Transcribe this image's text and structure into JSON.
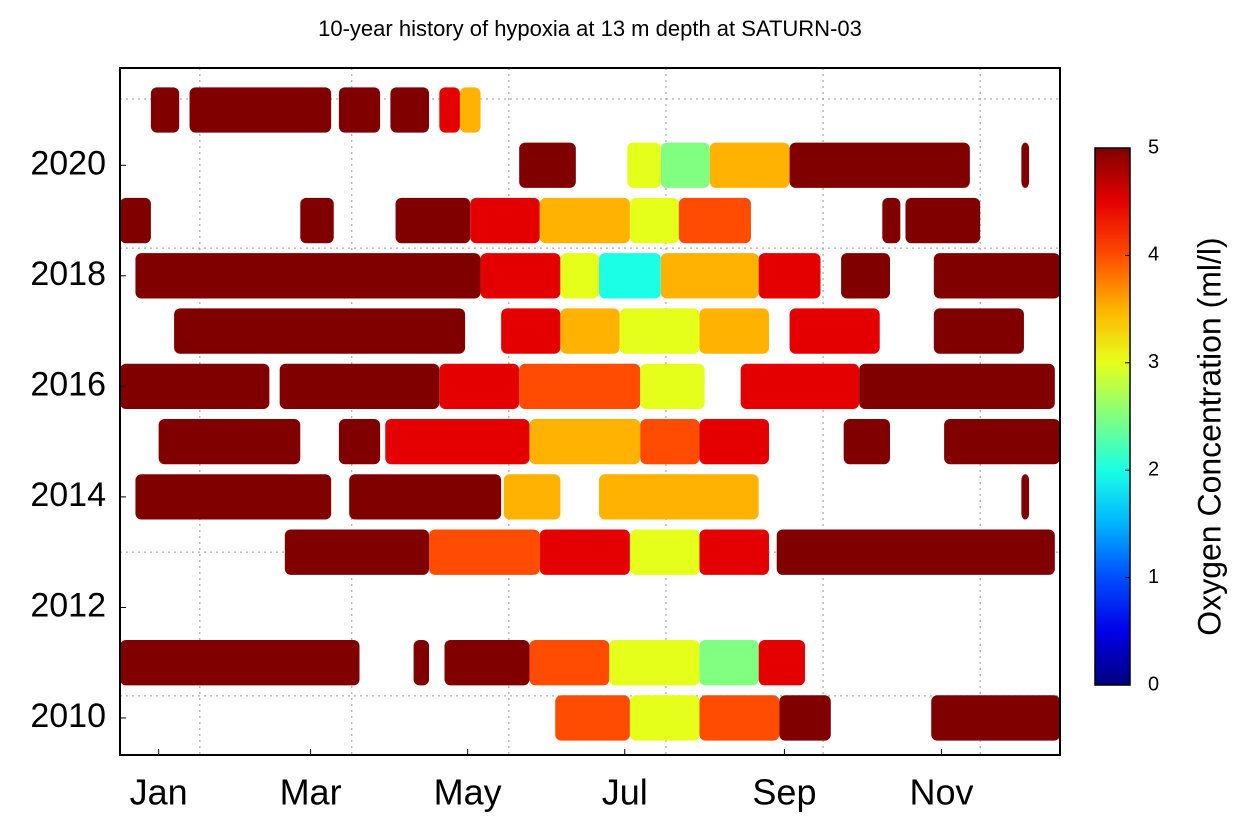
{
  "chart_data": {
    "type": "heatmap",
    "title": "10-year history of hypoxia at 13 m depth at SATURN-03",
    "xlim": [
      0,
      365
    ],
    "xticks": [
      {
        "value": 15,
        "label": "Jan"
      },
      {
        "value": 74,
        "label": "Mar"
      },
      {
        "value": 135,
        "label": "May"
      },
      {
        "value": 196,
        "label": "Jul"
      },
      {
        "value": 258,
        "label": "Sep"
      },
      {
        "value": 319,
        "label": "Nov"
      }
    ],
    "xgrid": [
      31,
      90,
      151,
      212,
      273,
      334
    ],
    "ylim": [
      2009.33,
      2021.76
    ],
    "yticks": [
      2010,
      2012,
      2014,
      2016,
      2018,
      2020
    ],
    "ygrid": [
      2010.4,
      2013,
      2018.5,
      2021.2
    ],
    "grid": true,
    "colorbar": {
      "label": "Oxygen Concentration (ml/l)",
      "colormap": "jet",
      "clim": [
        0,
        5
      ],
      "ticks": [
        0,
        1,
        2,
        3,
        4,
        5
      ]
    },
    "rows": [
      {
        "year": 2021,
        "segments": [
          [
            12,
            23,
            5
          ],
          [
            27,
            82,
            5
          ],
          [
            85,
            101,
            5
          ],
          [
            105,
            120,
            5
          ],
          [
            124,
            132,
            4.5
          ],
          [
            132,
            140,
            3.5
          ]
        ]
      },
      {
        "year": 2020,
        "segments": [
          [
            155,
            177,
            5
          ],
          [
            197,
            210,
            3
          ],
          [
            210,
            229,
            2.5
          ],
          [
            229,
            260,
            3.5
          ],
          [
            260,
            330,
            5
          ],
          [
            350,
            353,
            5
          ]
        ]
      },
      {
        "year": 2019,
        "segments": [
          [
            0,
            12,
            5
          ],
          [
            70,
            83,
            5
          ],
          [
            107,
            136,
            5
          ],
          [
            136,
            163,
            4.5
          ],
          [
            163,
            198,
            3.5
          ],
          [
            198,
            217,
            3
          ],
          [
            217,
            245,
            4
          ],
          [
            296,
            303,
            5
          ],
          [
            305,
            334,
            5
          ]
        ]
      },
      {
        "year": 2018,
        "segments": [
          [
            6,
            140,
            5
          ],
          [
            140,
            171,
            4.5
          ],
          [
            171,
            186,
            3
          ],
          [
            186,
            210,
            2
          ],
          [
            210,
            248,
            3.5
          ],
          [
            248,
            272,
            4.5
          ],
          [
            280,
            299,
            5
          ],
          [
            316,
            365,
            5
          ]
        ]
      },
      {
        "year": 2017,
        "segments": [
          [
            21,
            134,
            5
          ],
          [
            148,
            171,
            4.5
          ],
          [
            171,
            194,
            3.5
          ],
          [
            194,
            225,
            3
          ],
          [
            225,
            252,
            3.5
          ],
          [
            260,
            295,
            4.5
          ],
          [
            316,
            351,
            5
          ]
        ]
      },
      {
        "year": 2016,
        "segments": [
          [
            0,
            58,
            5
          ],
          [
            62,
            124,
            5
          ],
          [
            124,
            155,
            4.5
          ],
          [
            155,
            202,
            4
          ],
          [
            202,
            227,
            3
          ],
          [
            241,
            287,
            4.5
          ],
          [
            287,
            363,
            5
          ]
        ]
      },
      {
        "year": 2015,
        "segments": [
          [
            15,
            70,
            5
          ],
          [
            85,
            101,
            5
          ],
          [
            103,
            159,
            4.5
          ],
          [
            159,
            202,
            3.5
          ],
          [
            202,
            225,
            4
          ],
          [
            225,
            252,
            4.5
          ],
          [
            281,
            299,
            5
          ],
          [
            320,
            365,
            5
          ]
        ]
      },
      {
        "year": 2014,
        "segments": [
          [
            6,
            82,
            5
          ],
          [
            89,
            148,
            5
          ],
          [
            149,
            171,
            3.5
          ],
          [
            186,
            248,
            3.5
          ],
          [
            350,
            353,
            5
          ]
        ]
      },
      {
        "year": 2013,
        "segments": [
          [
            64,
            120,
            5
          ],
          [
            120,
            163,
            4
          ],
          [
            163,
            198,
            4.5
          ],
          [
            198,
            225,
            3
          ],
          [
            225,
            252,
            4.5
          ],
          [
            255,
            363,
            5
          ]
        ]
      },
      {
        "year": 2011,
        "segments": [
          [
            0,
            93,
            5
          ],
          [
            114,
            120,
            5
          ],
          [
            126,
            159,
            5
          ],
          [
            159,
            190,
            4
          ],
          [
            190,
            225,
            3
          ],
          [
            225,
            248,
            2.5
          ],
          [
            248,
            266,
            4.5
          ]
        ]
      },
      {
        "year": 2010,
        "segments": [
          [
            169,
            198,
            4
          ],
          [
            198,
            225,
            3
          ],
          [
            225,
            256,
            4
          ],
          [
            256,
            276,
            5
          ],
          [
            315,
            365,
            5
          ]
        ]
      }
    ]
  }
}
